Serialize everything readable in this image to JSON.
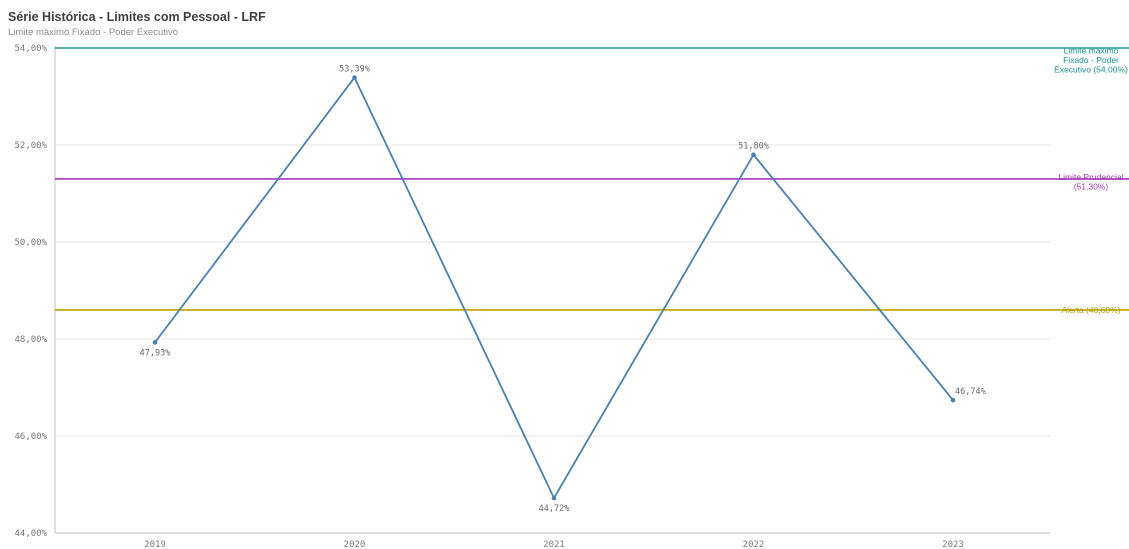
{
  "header": {
    "title": "Série Histórica - Limites com Pessoal - LRF",
    "subtitle": "Limite máximo Fixado - Poder Executivo"
  },
  "colors": {
    "series": "#4d7fae",
    "grid": "#e6e6e6",
    "axis": "#bfbfbf"
  },
  "chart_data": {
    "type": "line",
    "title": "Série Histórica - Limites com Pessoal - LRF",
    "subtitle": "Limite máximo Fixado - Poder Executivo",
    "categories": [
      "2019",
      "2020",
      "2021",
      "2022",
      "2023"
    ],
    "values": [
      47.93,
      53.39,
      44.72,
      51.8,
      46.74
    ],
    "value_labels": [
      "47,93%",
      "53,39%",
      "44,72%",
      "51,80%",
      "46,74%"
    ],
    "ylim": [
      44,
      54
    ],
    "y_ticks": [
      54,
      52,
      50,
      48,
      46,
      44
    ],
    "y_tick_labels": [
      "54,00%",
      "52,00%",
      "50,00%",
      "48,00%",
      "46,00%",
      "44,00%"
    ],
    "grid": true,
    "reference_lines": [
      {
        "value": 54.0,
        "label_lines": [
          "Limite máximo",
          "Fixado - Poder",
          "Executivo (54,00%)"
        ],
        "color": "#1a9696"
      },
      {
        "value": 51.3,
        "label_lines": [
          "Limite Prudencial",
          "(51,30%)"
        ],
        "color": "#a23ab5"
      },
      {
        "value": 48.6,
        "label_lines": [
          "Alerta (48,60%)"
        ],
        "color": "#b5a200"
      }
    ]
  }
}
